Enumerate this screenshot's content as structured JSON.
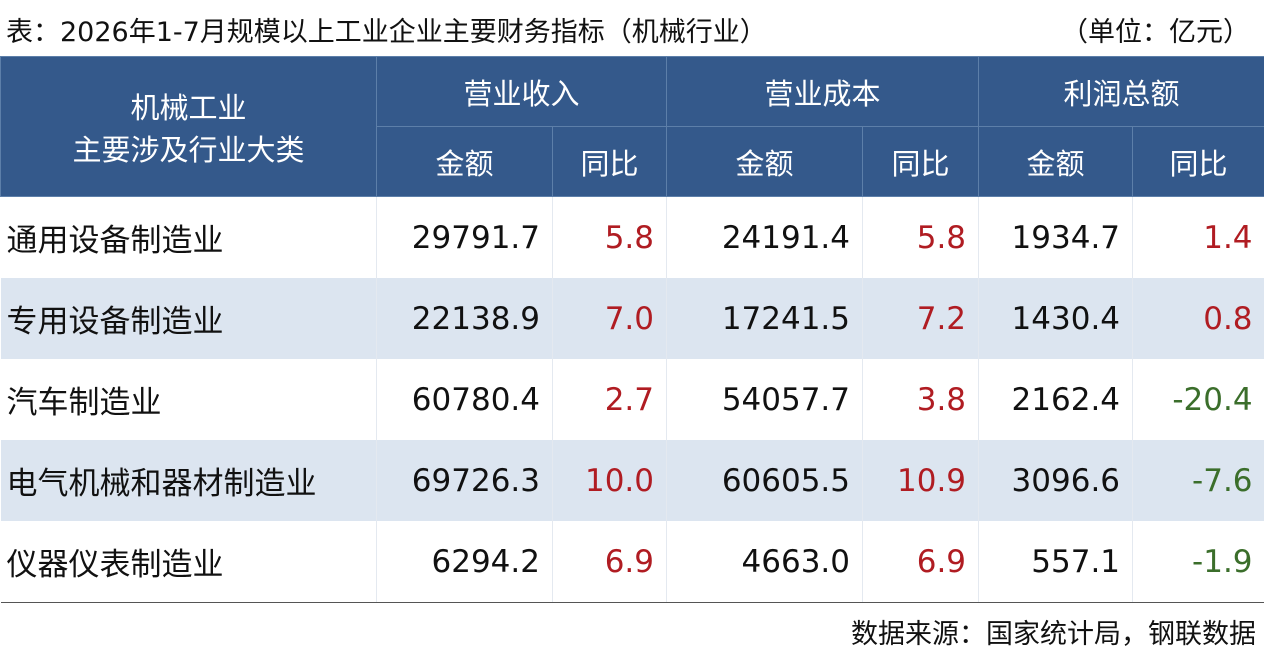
{
  "title": "表：2026年1-7月规模以上工业企业主要财务指标（机械行业）",
  "unit": "（单位：亿元）",
  "table": {
    "row_header": [
      "机械工业",
      "主要涉及行业大类"
    ],
    "groups": [
      {
        "name": "营业收入",
        "columns": [
          "金额",
          "同比"
        ]
      },
      {
        "name": "营业成本",
        "columns": [
          "金额",
          "同比"
        ]
      },
      {
        "name": "利润总额",
        "columns": [
          "金额",
          "同比"
        ]
      }
    ],
    "rows": [
      {
        "name": "通用设备制造业",
        "cells": [
          "29791.7",
          "5.8",
          "24191.4",
          "5.8",
          "1934.7",
          "1.4"
        ]
      },
      {
        "name": "专用设备制造业",
        "cells": [
          "22138.9",
          "7.0",
          "17241.5",
          "7.2",
          "1430.4",
          "0.8"
        ]
      },
      {
        "name": "汽车制造业",
        "cells": [
          "60780.4",
          "2.7",
          "54057.7",
          "3.8",
          "2162.4",
          "-20.4"
        ]
      },
      {
        "name": "电气机械和器材制造业",
        "cells": [
          "69726.3",
          "10.0",
          "60605.5",
          "10.9",
          "3096.6",
          "-7.6"
        ]
      },
      {
        "name": "仪器仪表制造业",
        "cells": [
          "6294.2",
          "6.9",
          "4663.0",
          "6.9",
          "557.1",
          "-1.9"
        ]
      }
    ]
  },
  "source": "数据来源：国家统计局，钢联数据"
}
